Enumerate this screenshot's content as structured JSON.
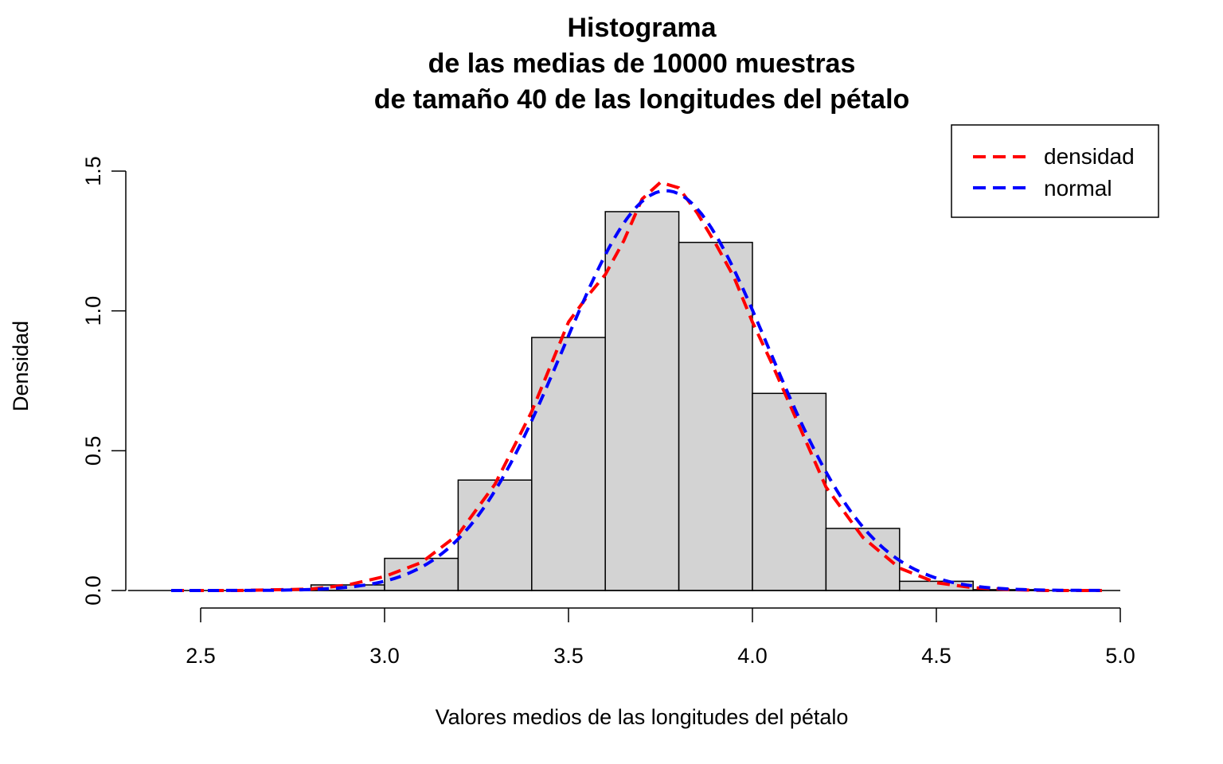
{
  "chart_data": {
    "type": "bar",
    "title_lines": [
      "Histograma",
      "de las medias de 10000 muestras",
      "de tamaño 40 de las longitudes del pétalo"
    ],
    "xlabel": "Valores medios de las longitudes del pétalo",
    "ylabel": "Densidad",
    "xlim": [
      2.4,
      5.0
    ],
    "ylim": [
      0,
      1.5
    ],
    "x_ticks": [
      "2.5",
      "3.0",
      "3.5",
      "4.0",
      "4.5",
      "5.0"
    ],
    "y_ticks": [
      "0.0",
      "0.5",
      "1.0",
      "1.5"
    ],
    "grid": false,
    "legend_position": "top-right",
    "bins": [
      {
        "from": 2.8,
        "to": 3.0,
        "density": 0.02
      },
      {
        "from": 3.0,
        "to": 3.2,
        "density": 0.115
      },
      {
        "from": 3.2,
        "to": 3.4,
        "density": 0.395
      },
      {
        "from": 3.4,
        "to": 3.6,
        "density": 0.905
      },
      {
        "from": 3.6,
        "to": 3.8,
        "density": 1.355
      },
      {
        "from": 3.8,
        "to": 4.0,
        "density": 1.245
      },
      {
        "from": 4.0,
        "to": 4.2,
        "density": 0.705
      },
      {
        "from": 4.2,
        "to": 4.4,
        "density": 0.222
      },
      {
        "from": 4.4,
        "to": 4.6,
        "density": 0.033
      },
      {
        "from": 4.6,
        "to": 4.8,
        "density": 0.003
      }
    ],
    "series": [
      {
        "name": "densidad",
        "color": "#ff0000",
        "style": "dashed",
        "x": [
          2.42,
          2.6,
          2.8,
          2.9,
          3.0,
          3.1,
          3.2,
          3.3,
          3.4,
          3.45,
          3.5,
          3.55,
          3.6,
          3.65,
          3.7,
          3.75,
          3.8,
          3.85,
          3.9,
          3.95,
          4.0,
          4.05,
          4.1,
          4.15,
          4.2,
          4.3,
          4.4,
          4.5,
          4.6,
          4.7,
          4.8,
          4.95
        ],
        "y": [
          0.0,
          0.0,
          0.005,
          0.02,
          0.05,
          0.1,
          0.2,
          0.38,
          0.64,
          0.8,
          0.96,
          1.05,
          1.13,
          1.25,
          1.4,
          1.46,
          1.44,
          1.35,
          1.24,
          1.12,
          0.96,
          0.82,
          0.67,
          0.52,
          0.37,
          0.19,
          0.08,
          0.028,
          0.01,
          0.003,
          0.0,
          0.0
        ]
      },
      {
        "name": "normal",
        "color": "#0000ff",
        "style": "dashed",
        "mean": 3.765,
        "sd": 0.279
      }
    ]
  }
}
